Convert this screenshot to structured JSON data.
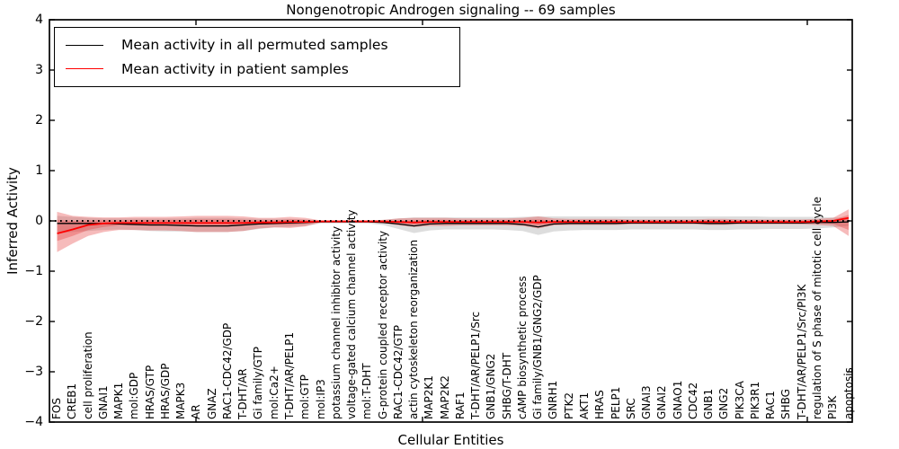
{
  "chart_data": {
    "type": "line",
    "title": "Nongenotropic Androgen signaling -- 69 samples",
    "xlabel": "Cellular Entities",
    "ylabel": "Inferred Activity",
    "ylim": [
      -4,
      4
    ],
    "grid": false,
    "legend_position": "upper left",
    "zero_reference_line": 0,
    "ytick_labels": [
      "4",
      "3",
      "2",
      "1",
      "0",
      "−1",
      "−2",
      "−3",
      "−4"
    ],
    "ytick_values": [
      4,
      3,
      2,
      1,
      0,
      -1,
      -2,
      -3,
      -4
    ],
    "categories": [
      "FOS",
      "CREB1",
      "cell proliferation",
      "GNAI1",
      "MAPK1",
      "mol:GDP",
      "HRAS/GTP",
      "HRAS/GDP",
      "MAPK3",
      "AR",
      "GNAZ",
      "RAC1-CDC42/GDP",
      "T-DHT/AR",
      "Gi family/GTP",
      "mol:Ca2+",
      "T-DHT/AR/PELP1",
      "mol:GTP",
      "mol:IP3",
      "potassium channel inhibitor activity",
      "voltage-gated calcium channel activity",
      "mol:T-DHT",
      "G-protein coupled receptor activity",
      "RAC1-CDC42/GTP",
      "actin cytoskeleton reorganization",
      "MAP2K1",
      "MAP2K2",
      "RAF1",
      "T-DHT/AR/PELP1/Src",
      "GNB1/GNG2",
      "SHBG/T-DHT",
      "cAMP biosynthetic process",
      "Gi family/GNB1/GNG2/GDP",
      "GNRH1",
      "PTK2",
      "AKT1",
      "HRAS",
      "PELP1",
      "SRC",
      "GNAI3",
      "GNAI2",
      "GNAO1",
      "CDC42",
      "GNB1",
      "GNG2",
      "PIK3CA",
      "PIK3R1",
      "RAC1",
      "SHBG",
      "T-DHT/AR/PELP1/Src/PI3K",
      "regulation of S phase of mitotic cell cycle",
      "PI3K",
      "apoptosis"
    ],
    "series": [
      {
        "name": "Mean activity in all permuted samples",
        "color": "#000000",
        "values": [
          -0.05,
          -0.05,
          -0.05,
          -0.05,
          -0.06,
          -0.07,
          -0.08,
          -0.08,
          -0.09,
          -0.1,
          -0.1,
          -0.1,
          -0.08,
          -0.06,
          -0.05,
          -0.04,
          -0.03,
          -0.02,
          -0.02,
          -0.02,
          -0.02,
          -0.03,
          -0.06,
          -0.1,
          -0.06,
          -0.05,
          -0.05,
          -0.05,
          -0.05,
          -0.05,
          -0.07,
          -0.12,
          -0.06,
          -0.05,
          -0.05,
          -0.05,
          -0.05,
          -0.04,
          -0.04,
          -0.04,
          -0.04,
          -0.04,
          -0.05,
          -0.05,
          -0.04,
          -0.04,
          -0.04,
          -0.04,
          -0.04,
          -0.03,
          -0.03,
          -0.02
        ]
      },
      {
        "name": "Mean activity in patient samples",
        "color": "#ff0000",
        "values": [
          -0.25,
          -0.17,
          -0.08,
          -0.05,
          -0.04,
          -0.04,
          -0.04,
          -0.04,
          -0.04,
          -0.04,
          -0.04,
          -0.04,
          -0.04,
          -0.03,
          -0.03,
          -0.02,
          -0.02,
          -0.01,
          -0.01,
          -0.01,
          -0.01,
          -0.01,
          -0.02,
          -0.03,
          -0.02,
          -0.02,
          -0.02,
          -0.02,
          -0.02,
          -0.02,
          -0.02,
          -0.03,
          -0.02,
          -0.02,
          -0.02,
          -0.02,
          -0.02,
          -0.02,
          -0.02,
          -0.02,
          -0.02,
          -0.02,
          -0.02,
          -0.02,
          -0.02,
          -0.02,
          -0.02,
          -0.02,
          -0.02,
          -0.01,
          0.0,
          0.06
        ]
      }
    ],
    "bands": [
      {
        "name": "permuted-samples-band",
        "color": "#787878",
        "opacity": 0.25,
        "upper": [
          0.1,
          0.08,
          0.06,
          0.05,
          0.05,
          0.05,
          0.05,
          0.05,
          0.05,
          0.06,
          0.06,
          0.06,
          0.05,
          0.04,
          0.04,
          0.04,
          0.03,
          0.01,
          0.01,
          0.01,
          0.01,
          0.02,
          0.05,
          0.07,
          0.07,
          0.07,
          0.07,
          0.07,
          0.07,
          0.07,
          0.08,
          0.09,
          0.09,
          0.09,
          0.09,
          0.09,
          0.09,
          0.09,
          0.09,
          0.09,
          0.09,
          0.09,
          0.09,
          0.09,
          0.09,
          0.09,
          0.08,
          0.08,
          0.08,
          0.08,
          0.07,
          0.06
        ],
        "lower": [
          -0.25,
          -0.22,
          -0.2,
          -0.18,
          -0.17,
          -0.18,
          -0.2,
          -0.21,
          -0.21,
          -0.22,
          -0.22,
          -0.22,
          -0.2,
          -0.16,
          -0.13,
          -0.12,
          -0.1,
          -0.05,
          -0.05,
          -0.05,
          -0.05,
          -0.08,
          -0.16,
          -0.24,
          -0.19,
          -0.17,
          -0.17,
          -0.17,
          -0.17,
          -0.18,
          -0.2,
          -0.28,
          -0.21,
          -0.19,
          -0.18,
          -0.18,
          -0.18,
          -0.17,
          -0.17,
          -0.17,
          -0.17,
          -0.17,
          -0.18,
          -0.18,
          -0.17,
          -0.17,
          -0.16,
          -0.16,
          -0.16,
          -0.15,
          -0.13,
          -0.1
        ]
      },
      {
        "name": "patient-samples-outer-band",
        "color": "#e63c3c",
        "opacity": 0.35,
        "upper": [
          0.18,
          0.1,
          0.08,
          0.07,
          0.07,
          0.08,
          0.08,
          0.08,
          0.09,
          0.1,
          0.1,
          0.1,
          0.09,
          0.06,
          0.06,
          0.08,
          0.06,
          0.01,
          0.01,
          0.01,
          0.01,
          0.02,
          0.05,
          0.06,
          0.06,
          0.06,
          0.05,
          0.05,
          0.05,
          0.05,
          0.06,
          0.09,
          0.05,
          0.04,
          0.04,
          0.04,
          0.04,
          0.03,
          0.03,
          0.03,
          0.03,
          0.03,
          0.04,
          0.04,
          0.03,
          0.03,
          0.03,
          0.03,
          0.03,
          0.04,
          0.06,
          0.23
        ],
        "lower": [
          -0.62,
          -0.45,
          -0.3,
          -0.22,
          -0.18,
          -0.18,
          -0.19,
          -0.19,
          -0.2,
          -0.22,
          -0.22,
          -0.22,
          -0.2,
          -0.15,
          -0.13,
          -0.14,
          -0.11,
          -0.03,
          -0.03,
          -0.03,
          -0.03,
          -0.04,
          -0.09,
          -0.12,
          -0.1,
          -0.1,
          -0.09,
          -0.09,
          -0.09,
          -0.09,
          -0.1,
          -0.15,
          -0.09,
          -0.08,
          -0.08,
          -0.08,
          -0.08,
          -0.07,
          -0.07,
          -0.07,
          -0.07,
          -0.07,
          -0.08,
          -0.08,
          -0.07,
          -0.07,
          -0.07,
          -0.07,
          -0.07,
          -0.08,
          -0.1,
          -0.3
        ]
      },
      {
        "name": "patient-samples-inner-band",
        "color": "#e63c3c",
        "opacity": 0.35,
        "upper": [
          0.02,
          0.0,
          0.01,
          0.01,
          0.01,
          0.02,
          0.02,
          0.02,
          0.02,
          0.03,
          0.03,
          0.03,
          0.02,
          0.01,
          0.01,
          0.03,
          0.02,
          0.0,
          0.0,
          0.0,
          0.0,
          0.0,
          0.01,
          0.01,
          0.02,
          0.02,
          0.01,
          0.01,
          0.01,
          0.01,
          0.02,
          0.03,
          0.01,
          0.01,
          0.01,
          0.01,
          0.01,
          0.01,
          0.01,
          0.01,
          0.01,
          0.01,
          0.01,
          0.01,
          0.01,
          0.01,
          0.01,
          0.01,
          0.01,
          0.01,
          0.02,
          0.12
        ],
        "lower": [
          -0.4,
          -0.3,
          -0.18,
          -0.12,
          -0.09,
          -0.09,
          -0.1,
          -0.1,
          -0.1,
          -0.11,
          -0.11,
          -0.11,
          -0.1,
          -0.07,
          -0.07,
          -0.08,
          -0.06,
          -0.02,
          -0.02,
          -0.02,
          -0.02,
          -0.02,
          -0.05,
          -0.07,
          -0.06,
          -0.06,
          -0.05,
          -0.05,
          -0.05,
          -0.05,
          -0.06,
          -0.09,
          -0.05,
          -0.04,
          -0.04,
          -0.04,
          -0.04,
          -0.04,
          -0.04,
          -0.04,
          -0.04,
          -0.04,
          -0.04,
          -0.04,
          -0.04,
          -0.04,
          -0.04,
          -0.04,
          -0.04,
          -0.04,
          -0.06,
          -0.18
        ]
      }
    ],
    "legend": [
      {
        "label": "Mean activity in all permuted samples",
        "color": "#000000"
      },
      {
        "label": "Mean activity in patient samples",
        "color": "#ff0000"
      }
    ]
  }
}
